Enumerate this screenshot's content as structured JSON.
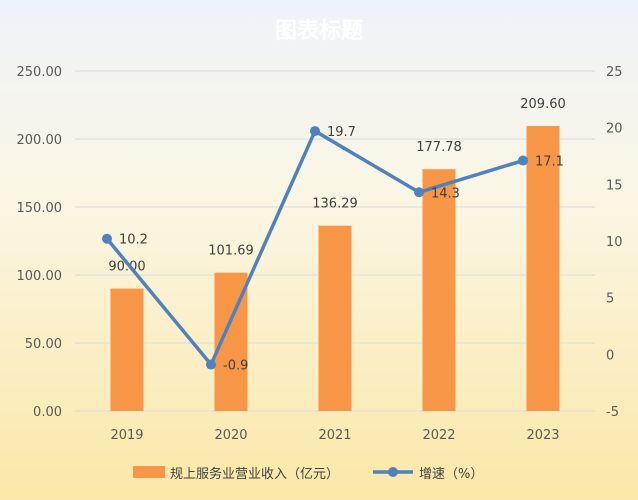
{
  "chart_data": {
    "type": "bar",
    "title": "图表标题",
    "categories": [
      "2019",
      "2020",
      "2021",
      "2022",
      "2023"
    ],
    "series": [
      {
        "name": "规上服务业营业收入（亿元）",
        "type": "bar",
        "axis": "left",
        "values": [
          90.0,
          101.69,
          136.29,
          177.78,
          209.6
        ],
        "labels": [
          "90.00",
          "101.69",
          "136.29",
          "177.78",
          "209.60"
        ],
        "color": "#f79646"
      },
      {
        "name": "增速（%）",
        "type": "line",
        "axis": "right",
        "values": [
          10.2,
          -0.9,
          19.7,
          14.3,
          17.1
        ],
        "labels": [
          "10.2",
          "-0.9",
          "19.7",
          "14.3",
          "17.1"
        ],
        "color": "#4f81bd"
      }
    ],
    "y_left": {
      "min": 0,
      "max": 250,
      "step": 50,
      "ticks": [
        "0.00",
        "50.00",
        "100.00",
        "150.00",
        "200.00",
        "250.00"
      ]
    },
    "y_right": {
      "min": -5,
      "max": 25,
      "step": 5,
      "ticks": [
        "-5",
        "0",
        "5",
        "10",
        "15",
        "20",
        "25"
      ]
    },
    "grid": true,
    "legend_position": "bottom"
  }
}
